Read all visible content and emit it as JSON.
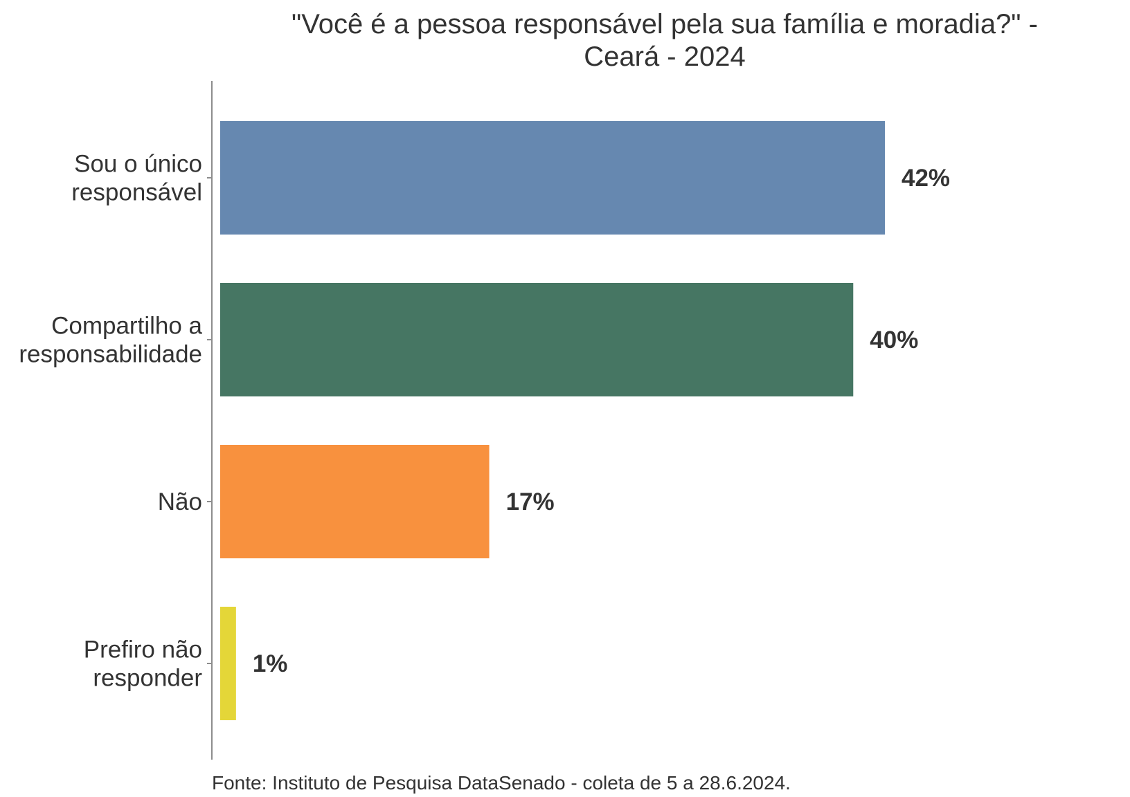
{
  "chart_data": {
    "type": "bar",
    "orientation": "horizontal",
    "title": "\"Você é a pessoa responsável pela sua família e moradia?\" - Ceará - 2024",
    "xlabel": "",
    "ylabel": "",
    "xlim": [
      0,
      50
    ],
    "grid": false,
    "categories": [
      "Sou o único responsável",
      "Compartilho a responsabilidade",
      "Não",
      "Prefiro não responder"
    ],
    "values": [
      42,
      40,
      17,
      1
    ],
    "value_labels": [
      "42%",
      "40%",
      "17%",
      "1%"
    ],
    "colors": [
      "#6688B0",
      "#467663",
      "#F8913E",
      "#E4D638"
    ]
  },
  "footer": {
    "source": "Fonte: Instituto de Pesquisa DataSenado - coleta de 5 a 28.6.2024."
  }
}
